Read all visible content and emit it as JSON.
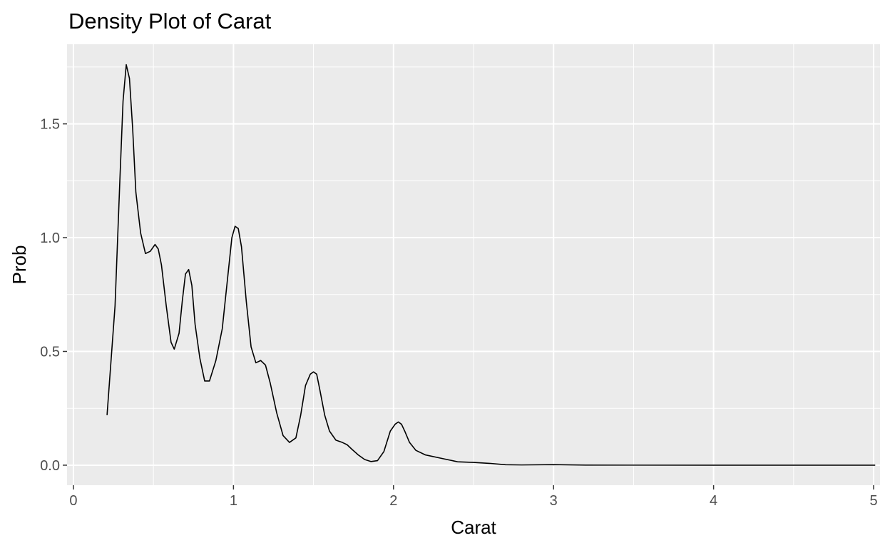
{
  "chart_data": {
    "type": "line",
    "title": "Density Plot of Carat",
    "xlabel": "Carat",
    "ylabel": "Prob",
    "xlim": [
      -0.04,
      5.04
    ],
    "ylim": [
      -0.088,
      1.85
    ],
    "x_ticks": [
      0,
      1,
      2,
      3,
      4,
      5
    ],
    "x_tick_labels": [
      "0",
      "1",
      "2",
      "3",
      "4",
      "5"
    ],
    "y_ticks": [
      0,
      0.5,
      1,
      1.5
    ],
    "y_tick_labels": [
      "0.0",
      "0.5",
      "1.0",
      "1.5"
    ],
    "grid": true,
    "panel_background": "#EBEBEB",
    "grid_color": "#FFFFFF",
    "line_color": "#000000",
    "series": [
      {
        "x": [
          0.21,
          0.26,
          0.29,
          0.31,
          0.33,
          0.35,
          0.37,
          0.39,
          0.42,
          0.45,
          0.48,
          0.51,
          0.53,
          0.55,
          0.58,
          0.61,
          0.63,
          0.66,
          0.68,
          0.7,
          0.72,
          0.74,
          0.76,
          0.79,
          0.82,
          0.85,
          0.89,
          0.93,
          0.96,
          0.99,
          1.01,
          1.03,
          1.05,
          1.08,
          1.11,
          1.14,
          1.17,
          1.2,
          1.23,
          1.27,
          1.31,
          1.35,
          1.39,
          1.42,
          1.45,
          1.48,
          1.5,
          1.52,
          1.54,
          1.57,
          1.6,
          1.64,
          1.68,
          1.71,
          1.74,
          1.78,
          1.82,
          1.86,
          1.9,
          1.94,
          1.98,
          2.01,
          2.03,
          2.05,
          2.07,
          2.1,
          2.14,
          2.2,
          2.3,
          2.4,
          2.5,
          2.6,
          2.7,
          2.8,
          3.0,
          3.2,
          3.5,
          4.0,
          4.5,
          5.01
        ],
        "y": [
          0.22,
          0.7,
          1.25,
          1.6,
          1.76,
          1.7,
          1.48,
          1.2,
          1.02,
          0.93,
          0.94,
          0.97,
          0.95,
          0.88,
          0.7,
          0.54,
          0.51,
          0.58,
          0.72,
          0.84,
          0.86,
          0.79,
          0.62,
          0.47,
          0.37,
          0.37,
          0.46,
          0.6,
          0.8,
          1.0,
          1.05,
          1.04,
          0.96,
          0.72,
          0.52,
          0.45,
          0.46,
          0.44,
          0.36,
          0.23,
          0.13,
          0.1,
          0.12,
          0.22,
          0.35,
          0.4,
          0.41,
          0.4,
          0.33,
          0.22,
          0.15,
          0.11,
          0.1,
          0.09,
          0.07,
          0.045,
          0.025,
          0.016,
          0.02,
          0.06,
          0.15,
          0.18,
          0.19,
          0.18,
          0.15,
          0.1,
          0.065,
          0.045,
          0.03,
          0.015,
          0.012,
          0.008,
          0.002,
          0.001,
          0.0025,
          0.0005,
          0.0002,
          0.0001,
          0.0001,
          0.0
        ]
      }
    ]
  }
}
